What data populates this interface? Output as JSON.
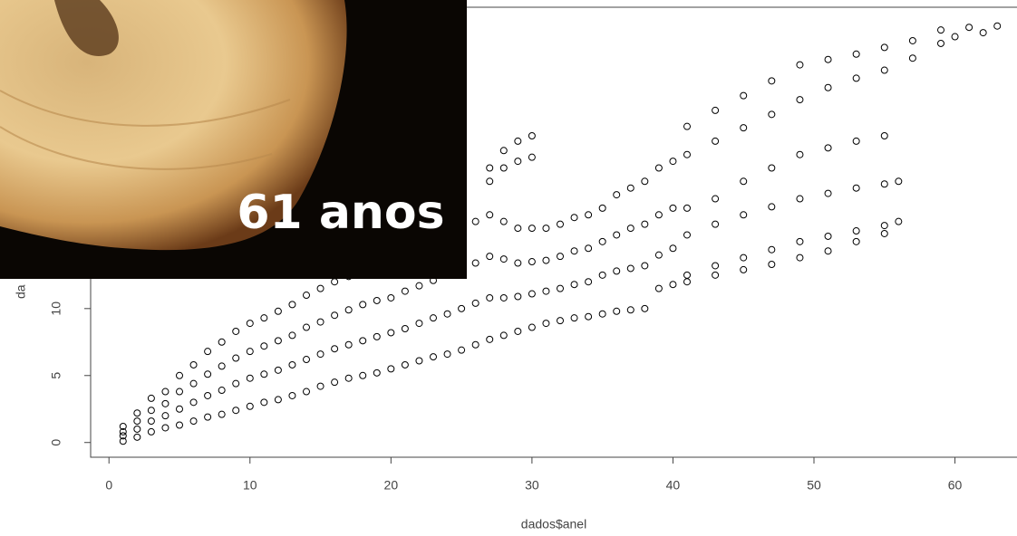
{
  "chart_data": {
    "type": "scatter",
    "xlabel": "dados$anel",
    "ylabel": "da",
    "annotation": "61 anos",
    "xlim": [
      -1.3,
      64.4
    ],
    "ylim": [
      -1.1,
      32.5
    ],
    "xticks": [
      0,
      10,
      20,
      30,
      40,
      50,
      60
    ],
    "yticks": [
      0,
      5,
      10
    ],
    "series": [
      {
        "color": "#000000",
        "x": [
          1,
          1,
          1,
          1,
          2,
          2,
          2,
          2,
          3,
          3,
          3,
          3,
          4,
          4,
          4,
          4,
          5,
          5,
          5,
          5,
          6,
          6,
          6,
          6,
          7,
          7,
          7,
          7,
          8,
          8,
          8,
          8,
          9,
          9,
          9,
          9,
          10,
          10,
          10,
          10,
          11,
          11,
          11,
          11,
          12,
          12,
          12,
          12,
          13,
          13,
          13,
          13,
          14,
          14,
          14,
          14,
          15,
          15,
          15,
          15,
          16,
          16,
          16,
          16,
          17,
          17,
          17,
          17,
          18,
          18,
          18,
          18,
          19,
          19,
          19,
          19,
          20,
          20,
          20,
          20,
          21,
          21,
          21,
          21,
          22,
          22,
          22,
          22,
          23,
          23,
          23,
          23,
          24,
          24,
          24,
          24,
          25,
          25,
          25,
          25,
          26,
          26,
          26,
          26,
          27,
          27,
          27,
          27,
          28,
          28,
          28,
          28,
          29,
          29,
          29,
          29,
          30,
          30,
          30,
          30,
          31,
          31,
          31,
          31,
          32,
          32,
          32,
          32,
          33,
          33,
          33,
          33,
          34,
          34,
          34,
          34,
          27,
          28,
          29,
          30,
          27,
          28,
          29,
          30,
          35,
          35,
          35,
          35,
          36,
          36,
          36,
          36,
          37,
          37,
          37,
          37,
          38,
          38,
          38,
          38,
          39,
          39,
          39,
          39,
          40,
          40,
          40,
          40,
          41,
          43,
          45,
          47,
          49,
          51,
          53,
          55,
          57,
          59,
          61,
          63,
          41,
          43,
          45,
          47,
          49,
          51,
          53,
          55,
          57,
          59,
          60,
          62,
          41,
          43,
          45,
          47,
          49,
          51,
          53,
          55,
          41,
          43,
          45,
          47,
          49,
          51,
          53,
          55,
          56,
          41,
          43,
          45,
          47,
          49,
          51,
          53,
          55,
          56,
          41,
          43,
          45,
          47,
          49,
          51,
          53,
          55
        ],
        "values": [
          0.1,
          0.5,
          0.8,
          1.2,
          0.4,
          1.0,
          1.6,
          2.2,
          0.8,
          1.6,
          2.4,
          3.3,
          1.1,
          2.0,
          2.9,
          3.8,
          1.3,
          2.5,
          3.8,
          5.0,
          1.6,
          3.0,
          4.4,
          5.8,
          1.9,
          3.5,
          5.1,
          6.8,
          2.1,
          3.9,
          5.7,
          7.5,
          2.4,
          4.4,
          6.3,
          8.3,
          2.7,
          4.8,
          6.8,
          8.9,
          3.0,
          5.1,
          7.2,
          9.3,
          3.2,
          5.4,
          7.6,
          9.8,
          3.5,
          5.8,
          8.0,
          10.3,
          3.8,
          6.2,
          8.6,
          11.0,
          4.2,
          6.6,
          9.0,
          11.5,
          4.5,
          7.0,
          9.5,
          12.0,
          4.8,
          7.3,
          9.9,
          12.4,
          5.0,
          7.6,
          10.3,
          12.9,
          5.2,
          7.9,
          10.6,
          13.2,
          5.5,
          8.2,
          10.8,
          13.5,
          5.8,
          8.5,
          11.3,
          14.0,
          6.1,
          8.9,
          11.7,
          14.5,
          6.4,
          9.3,
          12.1,
          15.0,
          6.6,
          9.6,
          12.6,
          15.5,
          6.9,
          10.0,
          13.0,
          16.0,
          7.3,
          10.4,
          13.4,
          16.5,
          7.7,
          10.8,
          13.9,
          17.0,
          8.0,
          10.8,
          13.7,
          16.5,
          8.3,
          10.9,
          13.4,
          16.0,
          8.6,
          11.1,
          13.5,
          16.0,
          8.9,
          11.3,
          13.6,
          16.0,
          9.1,
          11.5,
          13.9,
          16.3,
          9.3,
          11.8,
          14.3,
          16.8,
          9.4,
          12.0,
          14.5,
          17.0,
          20.5,
          21.8,
          22.5,
          22.9,
          19.5,
          20.5,
          21,
          21.3,
          9.6,
          12.5,
          15,
          17.5,
          9.8,
          12.8,
          15.5,
          18.5,
          9.9,
          13,
          16,
          19,
          10,
          13.2,
          16.3,
          19.5,
          11.5,
          14,
          17,
          20.5,
          11.8,
          14.5,
          17.5,
          21,
          23.6,
          24.8,
          25.9,
          27,
          28.2,
          28.6,
          29,
          29.5,
          30,
          30.8,
          31,
          31.1,
          21.5,
          22.5,
          23.5,
          24.5,
          25.6,
          26.5,
          27.2,
          27.8,
          28.7,
          29.8,
          30.3,
          30.6,
          17.5,
          18.2,
          19.5,
          20.5,
          21.5,
          22,
          22.5,
          22.9,
          15.5,
          16.3,
          17,
          17.6,
          18.2,
          18.6,
          19,
          19.3,
          19.5,
          12.5,
          13.2,
          13.8,
          14.4,
          15,
          15.4,
          15.8,
          16.2,
          16.5,
          12,
          12.5,
          12.9,
          13.3,
          13.8,
          14.3,
          15,
          15.6
        ]
      }
    ]
  }
}
